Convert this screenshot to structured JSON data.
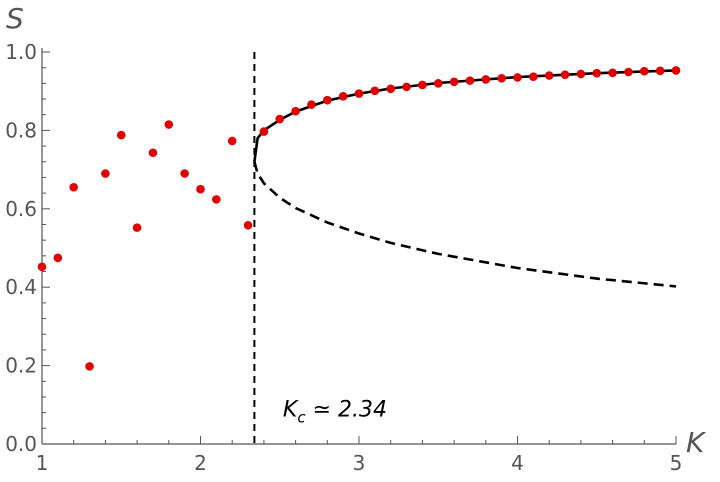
{
  "chart_data": {
    "type": "scatter",
    "title": "",
    "xlabel": "K",
    "ylabel": "S",
    "xlim": [
      1,
      5
    ],
    "ylim": [
      0,
      1
    ],
    "x_ticks": [
      1,
      2,
      3,
      4,
      5
    ],
    "y_ticks": [
      0.0,
      0.2,
      0.4,
      0.6,
      0.8,
      1.0
    ],
    "x_tick_labels": [
      "1",
      "2",
      "3",
      "4",
      "5"
    ],
    "y_tick_labels": [
      "0.0",
      "0.2",
      "0.4",
      "0.6",
      "0.8",
      "1.0"
    ],
    "grid": false,
    "critical_K": 2.34,
    "annotation": {
      "text_main": "K",
      "text_sub": "c",
      "text_rest": " ≃ 2.34",
      "x": 2.52,
      "y": 0.09
    },
    "colors": {
      "points": "#e00000",
      "curves": "#000000",
      "axes": "#555555"
    },
    "series": [
      {
        "kind": "scatter",
        "points": [
          [
            1.0,
            0.452
          ],
          [
            1.1,
            0.475
          ],
          [
            1.2,
            0.655
          ],
          [
            1.3,
            0.198
          ],
          [
            1.4,
            0.69
          ],
          [
            1.5,
            0.788
          ],
          [
            1.6,
            0.552
          ],
          [
            1.7,
            0.743
          ],
          [
            1.8,
            0.815
          ],
          [
            1.9,
            0.69
          ],
          [
            2.0,
            0.65
          ],
          [
            2.1,
            0.624
          ],
          [
            2.2,
            0.773
          ],
          [
            2.3,
            0.558
          ],
          [
            2.4,
            0.797
          ],
          [
            2.5,
            0.829
          ],
          [
            2.6,
            0.849
          ],
          [
            2.7,
            0.866
          ],
          [
            2.8,
            0.877
          ],
          [
            2.9,
            0.887
          ],
          [
            3.0,
            0.894
          ],
          [
            3.1,
            0.901
          ],
          [
            3.2,
            0.906
          ],
          [
            3.3,
            0.911
          ],
          [
            3.4,
            0.916
          ],
          [
            3.5,
            0.92
          ],
          [
            3.6,
            0.924
          ],
          [
            3.7,
            0.927
          ],
          [
            3.8,
            0.93
          ],
          [
            3.9,
            0.933
          ],
          [
            4.0,
            0.935
          ],
          [
            4.1,
            0.937
          ],
          [
            4.2,
            0.94
          ],
          [
            4.3,
            0.942
          ],
          [
            4.4,
            0.944
          ],
          [
            4.5,
            0.946
          ],
          [
            4.6,
            0.947
          ],
          [
            4.7,
            0.949
          ],
          [
            4.8,
            0.951
          ],
          [
            4.9,
            0.952
          ],
          [
            5.0,
            0.953
          ]
        ]
      },
      {
        "kind": "line-solid",
        "points": [
          [
            2.34,
            0.72
          ],
          [
            2.36,
            0.78
          ],
          [
            2.4,
            0.8
          ],
          [
            2.5,
            0.827
          ],
          [
            2.6,
            0.848
          ],
          [
            2.8,
            0.876
          ],
          [
            3.0,
            0.894
          ],
          [
            3.2,
            0.907
          ],
          [
            3.5,
            0.921
          ],
          [
            4.0,
            0.936
          ],
          [
            4.5,
            0.946
          ],
          [
            5.0,
            0.953
          ]
        ]
      },
      {
        "kind": "line-dashed",
        "points": [
          [
            2.34,
            0.72
          ],
          [
            2.36,
            0.69
          ],
          [
            2.4,
            0.665
          ],
          [
            2.5,
            0.628
          ],
          [
            2.6,
            0.602
          ],
          [
            2.8,
            0.565
          ],
          [
            3.0,
            0.537
          ],
          [
            3.2,
            0.513
          ],
          [
            3.5,
            0.485
          ],
          [
            4.0,
            0.449
          ],
          [
            4.5,
            0.422
          ],
          [
            5.0,
            0.402
          ]
        ]
      }
    ]
  }
}
